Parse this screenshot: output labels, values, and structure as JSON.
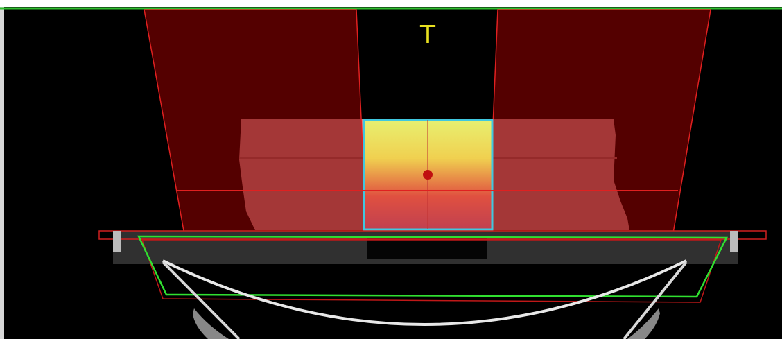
{
  "label": "T"
}
